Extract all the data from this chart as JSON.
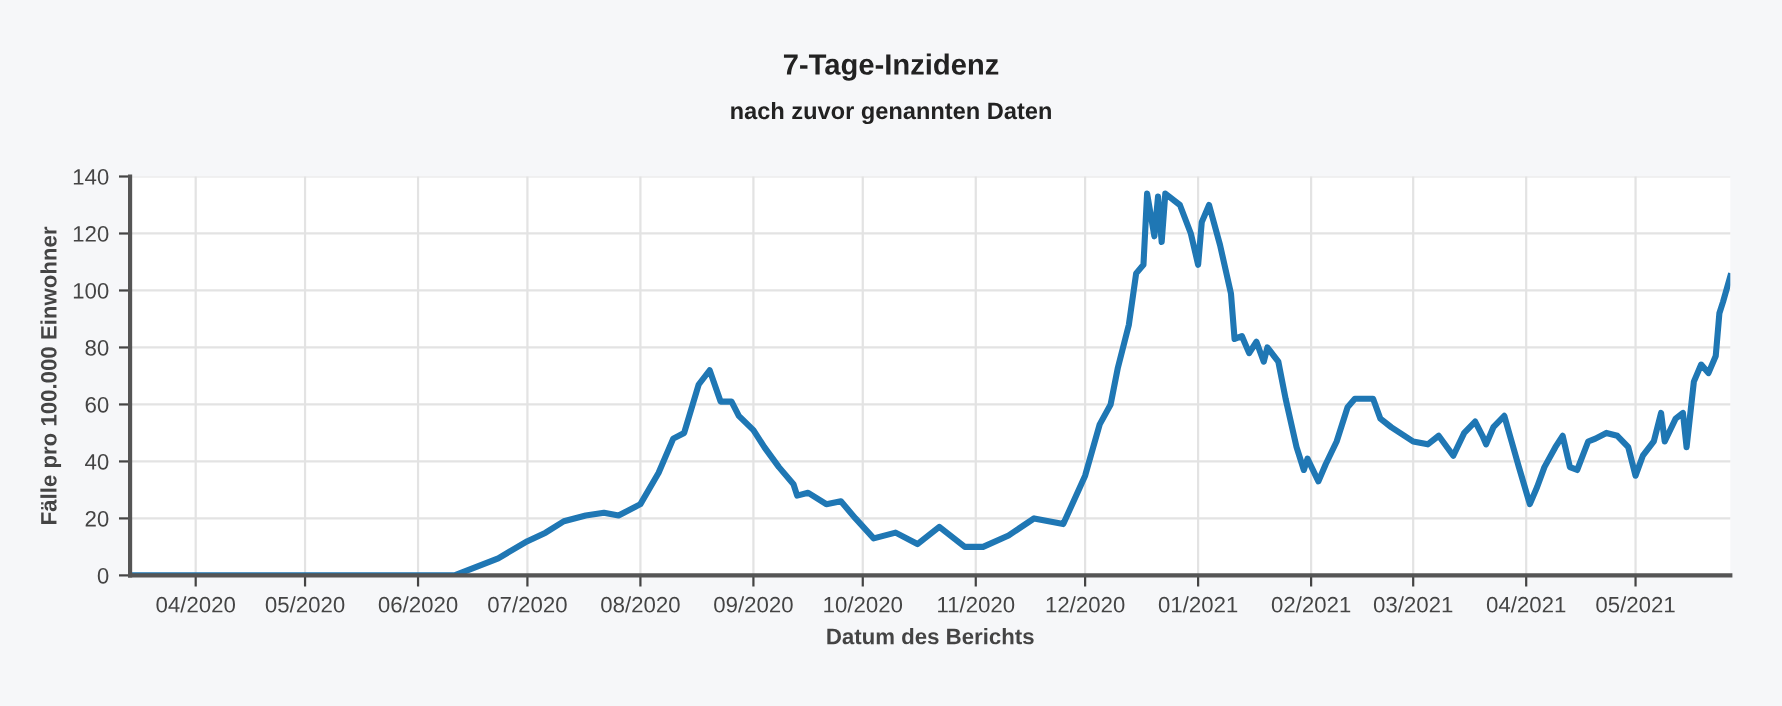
{
  "chart_data": {
    "type": "line",
    "title": "7-Tage-Inzidenz",
    "subtitle": "nach zuvor genannten Daten",
    "xlabel": "Datum des Berichts",
    "ylabel": "Fälle pro 100.000 Einwohner",
    "xlim": [
      "2020-03-14",
      "2021-05-27"
    ],
    "xticks": [
      {
        "value": "2020-04-01",
        "label": "04/2020"
      },
      {
        "value": "2020-05-01",
        "label": "05/2020"
      },
      {
        "value": "2020-06-01",
        "label": "06/2020"
      },
      {
        "value": "2020-07-01",
        "label": "07/2020"
      },
      {
        "value": "2020-08-01",
        "label": "08/2020"
      },
      {
        "value": "2020-09-01",
        "label": "09/2020"
      },
      {
        "value": "2020-10-01",
        "label": "10/2020"
      },
      {
        "value": "2020-11-01",
        "label": "11/2020"
      },
      {
        "value": "2020-12-01",
        "label": "12/2020"
      },
      {
        "value": "2021-01-01",
        "label": "01/2021"
      },
      {
        "value": "2021-02-01",
        "label": "02/2021"
      },
      {
        "value": "2021-03-01",
        "label": "03/2021"
      },
      {
        "value": "2021-04-01",
        "label": "04/2021"
      },
      {
        "value": "2021-05-01",
        "label": "05/2021"
      }
    ],
    "ylim": [
      0,
      140
    ],
    "yticks": [
      0,
      20,
      40,
      60,
      80,
      100,
      120,
      140
    ],
    "grid": true,
    "legend": false,
    "marker": "none",
    "line_style": "solid",
    "x": [
      "2020-03-14",
      "2020-06-11",
      "2020-06-17",
      "2020-06-23",
      "2020-07-01",
      "2020-07-06",
      "2020-07-11",
      "2020-07-17",
      "2020-07-22",
      "2020-07-26",
      "2020-08-01",
      "2020-08-06",
      "2020-08-10",
      "2020-08-13",
      "2020-08-17",
      "2020-08-20",
      "2020-08-23",
      "2020-08-26",
      "2020-08-28",
      "2020-09-01",
      "2020-09-04",
      "2020-09-08",
      "2020-09-12",
      "2020-09-13",
      "2020-09-16",
      "2020-09-21",
      "2020-09-25",
      "2020-09-29",
      "2020-10-04",
      "2020-10-10",
      "2020-10-16",
      "2020-10-22",
      "2020-10-29",
      "2020-11-03",
      "2020-11-10",
      "2020-11-17",
      "2020-11-25",
      "2020-12-01",
      "2020-12-05",
      "2020-12-08",
      "2020-12-10",
      "2020-12-13",
      "2020-12-15",
      "2020-12-17",
      "2020-12-18",
      "2020-12-20",
      "2020-12-21",
      "2020-12-22",
      "2020-12-23",
      "2020-12-27",
      "2020-12-30",
      "2021-01-01",
      "2021-01-02",
      "2021-01-04",
      "2021-01-07",
      "2021-01-10",
      "2021-01-11",
      "2021-01-13",
      "2021-01-15",
      "2021-01-17",
      "2021-01-19",
      "2021-01-20",
      "2021-01-23",
      "2021-01-25",
      "2021-01-28",
      "2021-01-30",
      "2021-01-31",
      "2021-02-03",
      "2021-02-05",
      "2021-02-08",
      "2021-02-11",
      "2021-02-13",
      "2021-02-18",
      "2021-02-20",
      "2021-02-23",
      "2021-03-01",
      "2021-03-05",
      "2021-03-08",
      "2021-03-12",
      "2021-03-15",
      "2021-03-18",
      "2021-03-20",
      "2021-03-21",
      "2021-03-23",
      "2021-03-26",
      "2021-03-28",
      "2021-03-30",
      "2021-04-02",
      "2021-04-04",
      "2021-04-06",
      "2021-04-09",
      "2021-04-11",
      "2021-04-13",
      "2021-04-15",
      "2021-04-18",
      "2021-04-20",
      "2021-04-23",
      "2021-04-26",
      "2021-04-29",
      "2021-05-01",
      "2021-05-03",
      "2021-05-06",
      "2021-05-08",
      "2021-05-09",
      "2021-05-12",
      "2021-05-14",
      "2021-05-15",
      "2021-05-17",
      "2021-05-19",
      "2021-05-21",
      "2021-05-23",
      "2021-05-24",
      "2021-05-25",
      "2021-05-27"
    ],
    "series": [
      {
        "color": "#1f77b4",
        "values": [
          0,
          0,
          3,
          6,
          12,
          15,
          19,
          21,
          22,
          21,
          25,
          36,
          48,
          50,
          67,
          72,
          61,
          61,
          56,
          51,
          45,
          38,
          32,
          28,
          29,
          25,
          26,
          20,
          13,
          15,
          11,
          17,
          10,
          10,
          14,
          20,
          18,
          35,
          53,
          60,
          73,
          88,
          106,
          109,
          134,
          119,
          133,
          117,
          134,
          130,
          120,
          109,
          124,
          130,
          116,
          99,
          83,
          84,
          78,
          82,
          75,
          80,
          75,
          62,
          45,
          37,
          41,
          33,
          39,
          47,
          59,
          62,
          62,
          55,
          52,
          47,
          46,
          49,
          42,
          50,
          54,
          49,
          46,
          52,
          56,
          47,
          38,
          25,
          31,
          38,
          45,
          49,
          38,
          37,
          47,
          48,
          50,
          49,
          45,
          35,
          42,
          47,
          57,
          47,
          55,
          57,
          45,
          68,
          74,
          71,
          77,
          92,
          96,
          105
        ]
      }
    ]
  }
}
